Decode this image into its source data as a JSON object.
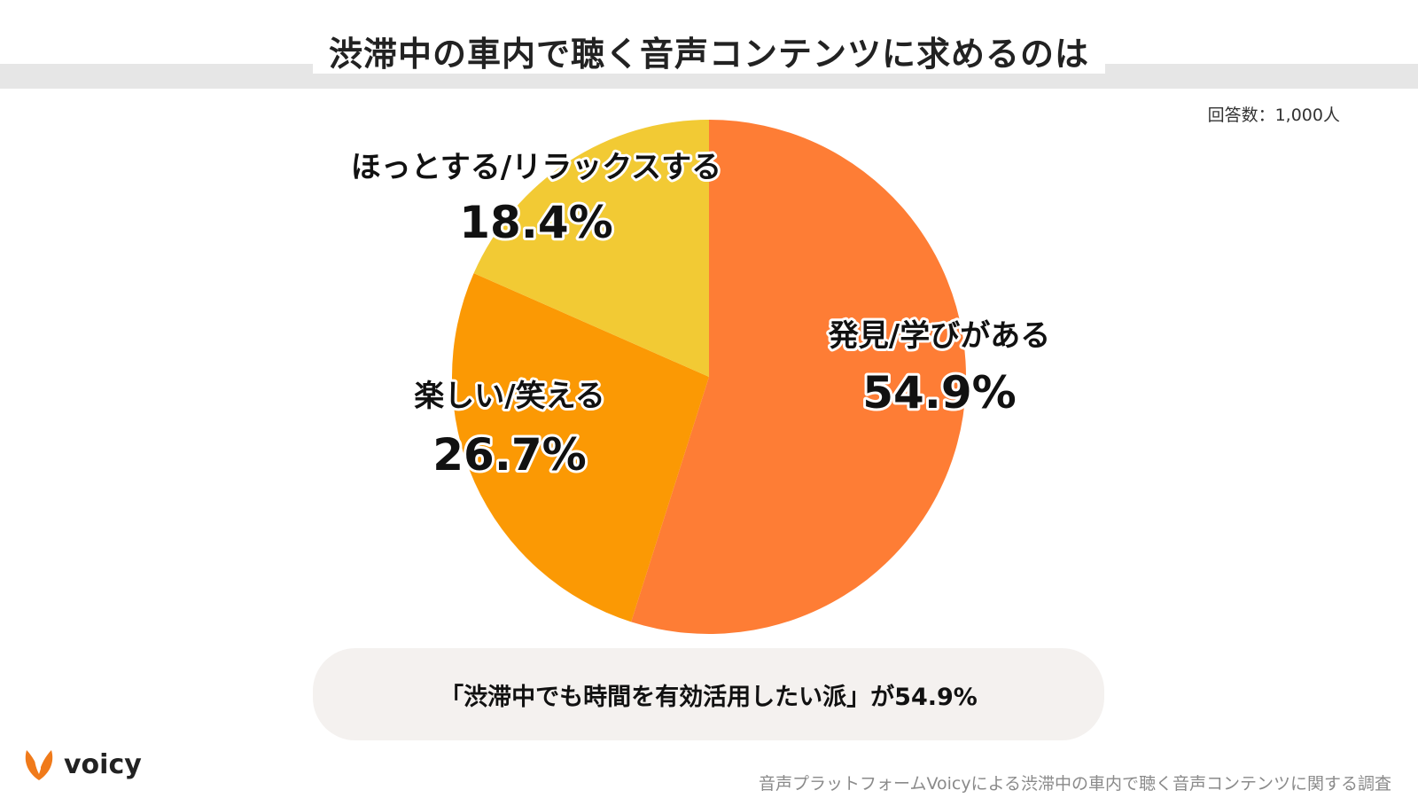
{
  "header": {
    "title": "渋滞中の車内で聴く音声コンテンツに求めるのは",
    "respondents": "回答数：1,000人"
  },
  "chart_data": {
    "type": "pie",
    "title": "渋滞中の車内で聴く音声コンテンツに求めるのは",
    "slices": [
      {
        "label": "発見/学びがある",
        "value": 54.9,
        "value_label": "54.9%",
        "color": "#fe7d35"
      },
      {
        "label": "楽しい/笑える",
        "value": 26.7,
        "value_label": "26.7%",
        "color": "#fb9904"
      },
      {
        "label": "ほっとする/リラックスする",
        "value": 18.4,
        "value_label": "18.4%",
        "color": "#f2ca34"
      }
    ],
    "start": "12 o'clock",
    "direction": "clockwise"
  },
  "summary": {
    "text": "「渋滞中でも時間を有効活用したい派」が54.9%"
  },
  "footer": {
    "logo_text": "voicy",
    "logo_icon": "voicy-leaf-icon",
    "logo_color": "#f07a1a",
    "source": "音声プラットフォームVoicyによる渋滞中の車内で聴く音声コンテンツに関する調査"
  }
}
